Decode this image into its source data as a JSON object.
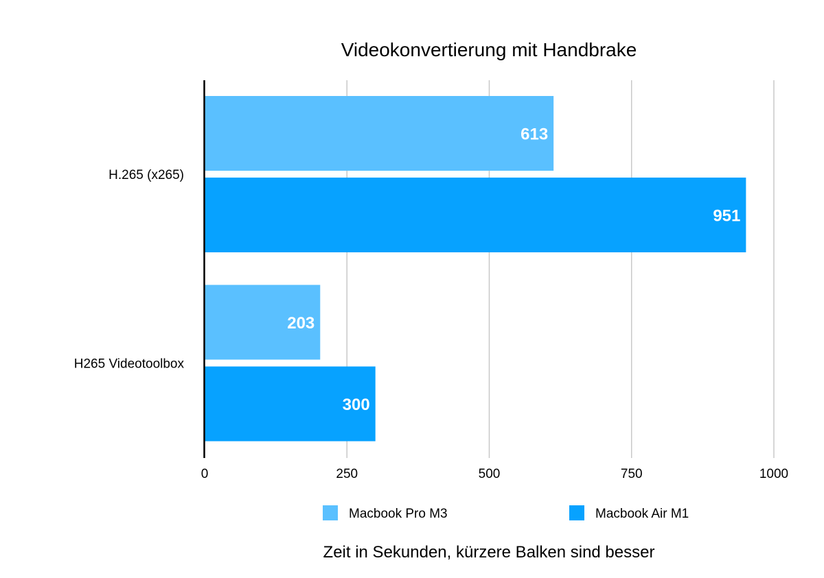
{
  "chart_data": {
    "type": "bar",
    "orientation": "horizontal",
    "title": "Videokonvertierung mit Handbrake",
    "categories": [
      "H.265 (x265)",
      "H265 Videotoolbox"
    ],
    "series": [
      {
        "name": "Macbook Pro M3",
        "values": [
          613,
          203
        ],
        "color": "#5AC0FF"
      },
      {
        "name": "Macbook Air M1",
        "values": [
          951,
          300
        ],
        "color": "#07A2FF"
      }
    ],
    "xlim": [
      0,
      1000
    ],
    "xticks": [
      "0",
      "250",
      "500",
      "750",
      "1000"
    ],
    "xlabel": "Zeit in Sekunden, kürzere Balken sind besser",
    "grid": "vertical",
    "legend_position": "bottom",
    "data_labels": true
  }
}
